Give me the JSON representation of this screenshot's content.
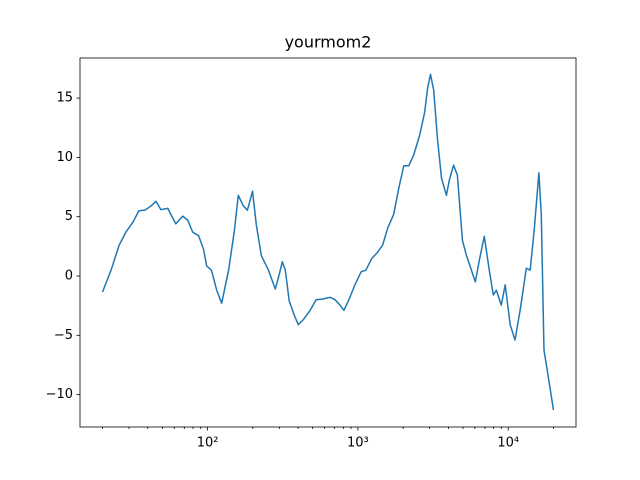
{
  "chart_data": {
    "type": "line",
    "title": "yourmom2",
    "x": [
      20,
      22.8,
      25.8,
      28.6,
      31.9,
      34.9,
      38.3,
      42.0,
      45.3,
      48.9,
      54.3,
      61.4,
      68.3,
      73.8,
      79.6,
      87.1,
      94.2,
      98.5,
      106,
      115,
      124,
      138,
      151,
      160,
      173,
      184,
      199,
      211,
      228,
      254,
      282,
      300,
      314,
      329,
      349,
      377,
      401,
      432,
      481,
      527,
      578,
      653,
      705,
      760,
      807,
      871,
      955,
      1050,
      1130,
      1240,
      1340,
      1460,
      1580,
      1730,
      1870,
      2020,
      2180,
      2350,
      2580,
      2780,
      2910,
      3040,
      3190,
      3390,
      3600,
      3880,
      4060,
      4330,
      4590,
      4960,
      5270,
      5600,
      6040,
      6430,
      6930,
      7480,
      7960,
      8340,
      8990,
      9550,
      10300,
      11100,
      12000,
      13200,
      14000,
      14900,
      16000,
      16600,
      17300,
      18400,
      20000
    ],
    "series": [
      {
        "color": "#1f77b4",
        "values": [
          -1.35,
          0.5,
          2.6,
          3.7,
          4.55,
          5.5,
          5.55,
          5.9,
          6.3,
          5.6,
          5.7,
          4.4,
          5.05,
          4.7,
          3.7,
          3.4,
          2.2,
          0.85,
          0.5,
          -1.2,
          -2.3,
          0.5,
          3.9,
          6.8,
          5.9,
          5.55,
          7.15,
          4.3,
          1.7,
          0.5,
          -1.1,
          0.15,
          1.2,
          0.5,
          -2.1,
          -3.3,
          -4.1,
          -3.7,
          -2.9,
          -2.0,
          -1.95,
          -1.8,
          -2.0,
          -2.45,
          -2.9,
          -2.0,
          -0.75,
          0.35,
          0.5,
          1.5,
          1.95,
          2.6,
          4.05,
          5.2,
          7.4,
          9.3,
          9.3,
          10.2,
          11.9,
          13.8,
          15.85,
          17.0,
          15.7,
          11.45,
          8.25,
          6.8,
          8.1,
          9.35,
          8.5,
          3.0,
          1.75,
          0.75,
          -0.5,
          1.35,
          3.35,
          0.5,
          -1.6,
          -1.2,
          -2.45,
          -0.75,
          -4.1,
          -5.4,
          -2.9,
          0.65,
          0.5,
          3.9,
          8.7,
          5.15,
          -6.25,
          -8.35,
          -11.3
        ]
      }
    ],
    "xscale": "log",
    "xlim": [
      14.16,
      28250
    ],
    "xticks": [
      {
        "value": 100,
        "label": "10²"
      },
      {
        "value": 1000,
        "label": "10³"
      },
      {
        "value": 10000,
        "label": "10⁴"
      }
    ],
    "xminorticks": [
      20,
      30,
      40,
      50,
      60,
      70,
      80,
      90,
      200,
      300,
      400,
      500,
      600,
      700,
      800,
      900,
      2000,
      3000,
      4000,
      5000,
      6000,
      7000,
      8000,
      9000,
      20000
    ],
    "ylim": [
      -12.73,
      18.38
    ],
    "yticks": [
      {
        "value": -10,
        "label": "−10"
      },
      {
        "value": -5,
        "label": "−5"
      },
      0,
      5,
      10,
      15
    ],
    "grid": false
  }
}
